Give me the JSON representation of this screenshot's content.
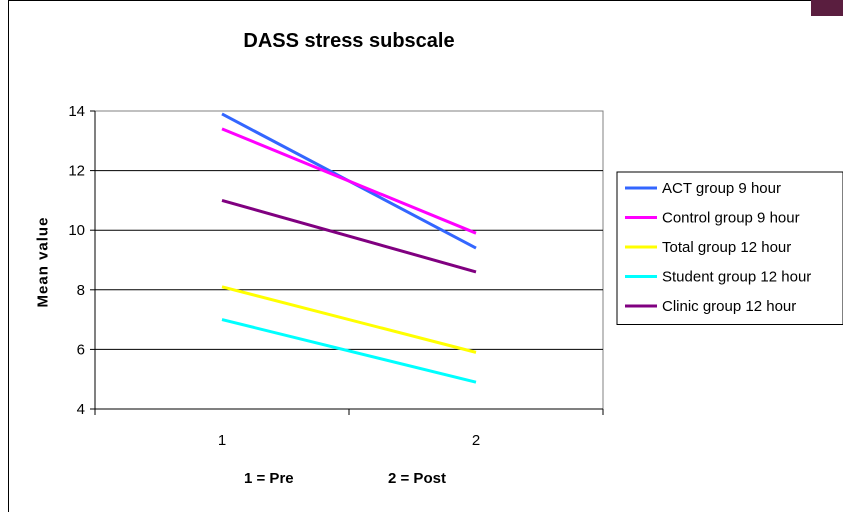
{
  "chart_data": {
    "type": "line",
    "title": "DASS stress subscale",
    "xlabel": "",
    "ylabel": "Mean value",
    "x": [
      1,
      2
    ],
    "x_tick_labels": [
      "1",
      "2"
    ],
    "ylim": [
      4,
      14
    ],
    "y_ticks": [
      4,
      6,
      8,
      10,
      12,
      14
    ],
    "grid": true,
    "legend_position": "right",
    "series": [
      {
        "name": "ACT group 9 hour",
        "values": [
          13.9,
          9.4
        ],
        "color": "#3366ff"
      },
      {
        "name": "Control group 9 hour",
        "values": [
          13.4,
          9.9
        ],
        "color": "#ff00ff"
      },
      {
        "name": "Total group 12 hour",
        "values": [
          8.1,
          5.9
        ],
        "color": "#ffff00"
      },
      {
        "name": "Student group 12 hour",
        "values": [
          7.0,
          4.9
        ],
        "color": "#00ffff"
      },
      {
        "name": "Clinic group 12 hour",
        "values": [
          11.0,
          8.6
        ],
        "color": "#800080"
      }
    ],
    "annotations": [
      "1 = Pre",
      "2 = Post"
    ]
  }
}
